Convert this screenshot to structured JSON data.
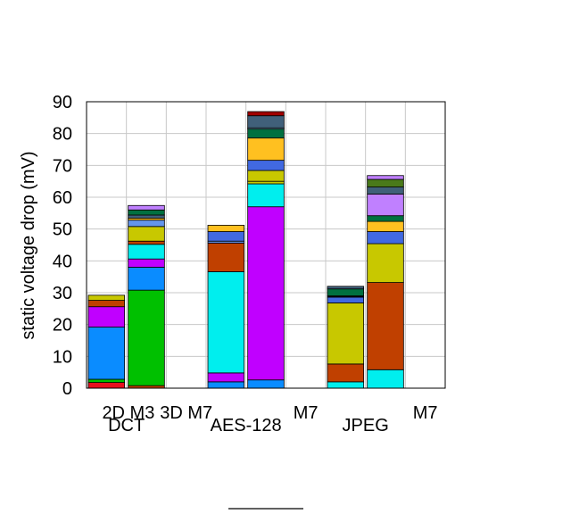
{
  "chart_data": {
    "type": "bar",
    "stacked": true,
    "title": "",
    "ylabel": "static voltage drop (mV)",
    "ylim": [
      0,
      90
    ],
    "yticks": [
      0,
      10,
      20,
      30,
      40,
      50,
      60,
      70,
      80,
      90
    ],
    "grid": true,
    "bar_labels": [
      "2D M3",
      "3D M7",
      "M7",
      "M7"
    ],
    "group_labels": [
      "DCT",
      "AES-128",
      "JPEG"
    ],
    "groups": [
      {
        "name": "DCT",
        "bars": [
          {
            "label": "2D M3",
            "segments": [
              {
                "color": "#e8101e",
                "value": 1.8
              },
              {
                "color": "#00c000",
                "value": 1.0
              },
              {
                "color": "#0a8cff",
                "value": 16.4
              },
              {
                "color": "#c000ff",
                "value": 6.4
              },
              {
                "color": "#c04000",
                "value": 2.0
              },
              {
                "color": "#c8c800",
                "value": 1.6
              }
            ]
          },
          {
            "label": "3D M7",
            "segments": [
              {
                "color": "#c04000",
                "value": 0.8
              },
              {
                "color": "#00c000",
                "value": 30.0
              },
              {
                "color": "#0a8cff",
                "value": 7.2
              },
              {
                "color": "#c000ff",
                "value": 2.6
              },
              {
                "color": "#00eeee",
                "value": 4.6
              },
              {
                "color": "#c04000",
                "value": 1.0
              },
              {
                "color": "#c8c800",
                "value": 4.6
              },
              {
                "color": "#6495ed",
                "value": 2.0
              },
              {
                "color": "#ffc020",
                "value": 0.6
              },
              {
                "color": "#40607a",
                "value": 1.0
              },
              {
                "color": "#007040",
                "value": 1.6
              },
              {
                "color": "#c080ff",
                "value": 1.4
              }
            ]
          }
        ]
      },
      {
        "name": "AES-128",
        "bars": [
          {
            "label": "M7",
            "segments": [
              {
                "color": "#0a8cff",
                "value": 2.0
              },
              {
                "color": "#c000ff",
                "value": 2.8
              },
              {
                "color": "#00eeee",
                "value": 31.8
              },
              {
                "color": "#c04000",
                "value": 9.0
              },
              {
                "color": "#6495ed",
                "value": 0.6
              },
              {
                "color": "#4169e1",
                "value": 3.0
              },
              {
                "color": "#ffc020",
                "value": 2.0
              }
            ]
          },
          {
            "label": "M7",
            "segments": [
              {
                "color": "#0a8cff",
                "value": 2.6
              },
              {
                "color": "#c000ff",
                "value": 54.4
              },
              {
                "color": "#00eeee",
                "value": 7.2
              },
              {
                "color": "#c8c800",
                "value": 0.8
              },
              {
                "color": "#c8c800",
                "value": 3.4
              },
              {
                "color": "#4169e1",
                "value": 3.2
              },
              {
                "color": "#ffc020",
                "value": 7.0
              },
              {
                "color": "#007040",
                "value": 2.8
              },
              {
                "color": "#87ceeb",
                "value": 0.4
              },
              {
                "color": "#40607a",
                "value": 3.8
              },
              {
                "color": "#a00000",
                "value": 1.3
              }
            ]
          }
        ]
      },
      {
        "name": "JPEG",
        "bars": [
          {
            "label": "M7",
            "segments": [
              {
                "color": "#00eeee",
                "value": 2.0
              },
              {
                "color": "#c04000",
                "value": 5.6
              },
              {
                "color": "#c8c800",
                "value": 19.2
              },
              {
                "color": "#4169e1",
                "value": 1.8
              },
              {
                "color": "#000000",
                "value": 0.4
              },
              {
                "color": "#007040",
                "value": 2.2
              },
              {
                "color": "#40607a",
                "value": 0.8
              }
            ]
          },
          {
            "label": "M7",
            "segments": [
              {
                "color": "#00eeee",
                "value": 5.8
              },
              {
                "color": "#c04000",
                "value": 27.4
              },
              {
                "color": "#c8c800",
                "value": 12.2
              },
              {
                "color": "#4169e1",
                "value": 3.8
              },
              {
                "color": "#ffc020",
                "value": 3.2
              },
              {
                "color": "#007040",
                "value": 1.8
              },
              {
                "color": "#c080ff",
                "value": 6.8
              },
              {
                "color": "#40607a",
                "value": 2.2
              },
              {
                "color": "#4a7a1a",
                "value": 2.4
              },
              {
                "color": "#c080ff",
                "value": 1.2
              }
            ]
          }
        ]
      }
    ]
  }
}
